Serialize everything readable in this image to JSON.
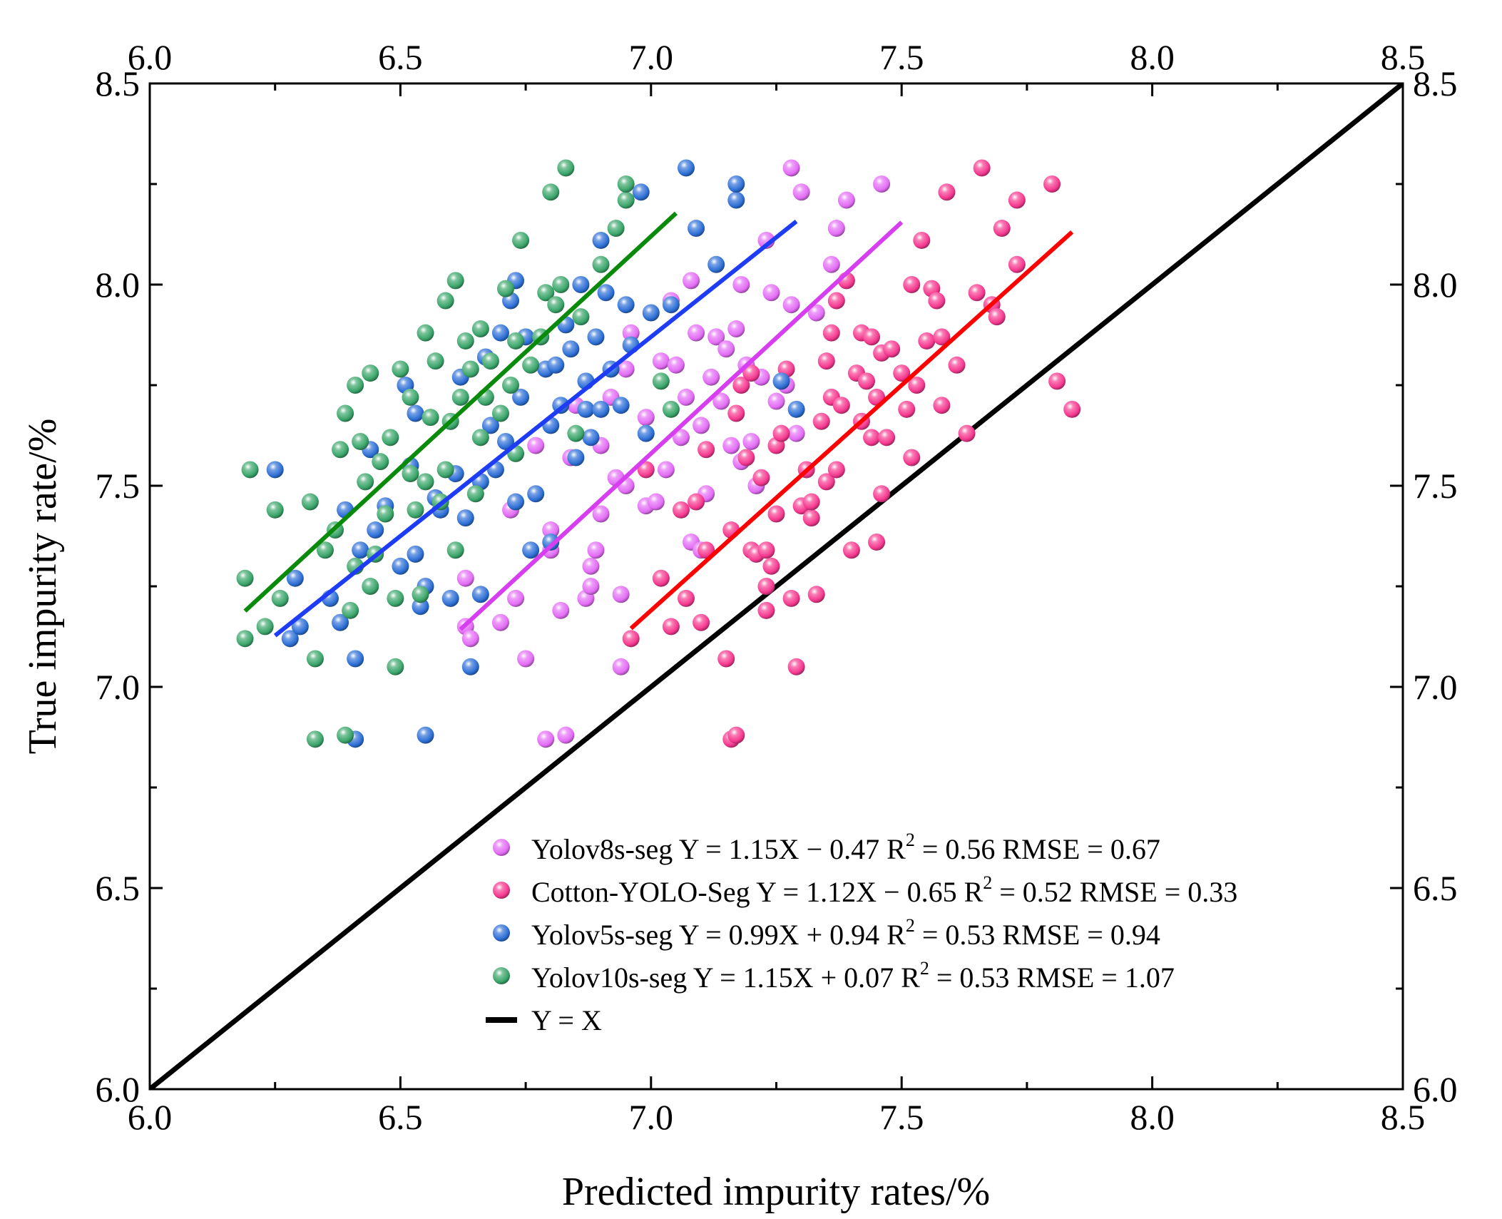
{
  "chart_data": {
    "type": "scatter",
    "xlabel": "Predicted impurity rates/%",
    "ylabel": "True impurity rate/%",
    "xlim": [
      6.0,
      8.5
    ],
    "ylim": [
      6.0,
      8.5
    ],
    "x_ticks": [
      "6.0",
      "6.5",
      "7.0",
      "7.5",
      "8.0",
      "8.5"
    ],
    "y_ticks": [
      "6.0",
      "6.5",
      "7.0",
      "7.5",
      "8.0",
      "8.5"
    ],
    "mirror_axes": true,
    "grid": false,
    "legend_position": "bottom-right",
    "series": [
      {
        "name": "Yolov8s-seg",
        "color": "#e36cf5",
        "marker": "sphere",
        "fit": {
          "slope": 1.15,
          "intercept": -0.47,
          "x_range": [
            6.62,
            7.5
          ],
          "color": "#d63ef0"
        },
        "legend_parts": [
          "Yolov8s-seg  Y = 1.15X − 0.47  R",
          "2",
          " = 0.56  RMSE = 0.67"
        ],
        "points": [
          [
            6.63,
            7.15
          ],
          [
            6.64,
            7.12
          ],
          [
            6.63,
            7.27
          ],
          [
            6.7,
            7.16
          ],
          [
            6.73,
            7.22
          ],
          [
            6.75,
            7.07
          ],
          [
            6.72,
            7.44
          ],
          [
            6.77,
            7.6
          ],
          [
            6.79,
            6.87
          ],
          [
            6.8,
            7.34
          ],
          [
            6.8,
            7.39
          ],
          [
            6.82,
            7.19
          ],
          [
            6.83,
            6.88
          ],
          [
            6.84,
            7.57
          ],
          [
            6.85,
            7.7
          ],
          [
            6.87,
            7.22
          ],
          [
            6.88,
            7.25
          ],
          [
            6.88,
            7.3
          ],
          [
            6.89,
            7.34
          ],
          [
            6.9,
            7.43
          ],
          [
            6.9,
            7.6
          ],
          [
            6.92,
            7.72
          ],
          [
            6.93,
            7.52
          ],
          [
            6.94,
            7.05
          ],
          [
            6.94,
            7.23
          ],
          [
            6.95,
            7.5
          ],
          [
            6.95,
            7.79
          ],
          [
            6.96,
            7.88
          ],
          [
            6.99,
            7.45
          ],
          [
            6.99,
            7.67
          ],
          [
            7.01,
            7.46
          ],
          [
            7.02,
            7.81
          ],
          [
            7.03,
            7.54
          ],
          [
            7.04,
            7.96
          ],
          [
            7.05,
            7.8
          ],
          [
            7.06,
            7.62
          ],
          [
            7.07,
            7.72
          ],
          [
            7.08,
            7.36
          ],
          [
            7.08,
            8.01
          ],
          [
            7.09,
            7.88
          ],
          [
            7.1,
            7.34
          ],
          [
            7.1,
            7.65
          ],
          [
            7.11,
            7.48
          ],
          [
            7.12,
            7.77
          ],
          [
            7.13,
            7.87
          ],
          [
            7.14,
            7.71
          ],
          [
            7.15,
            7.84
          ],
          [
            7.16,
            7.6
          ],
          [
            7.17,
            7.89
          ],
          [
            7.18,
            7.56
          ],
          [
            7.18,
            8.0
          ],
          [
            7.19,
            7.8
          ],
          [
            7.2,
            7.61
          ],
          [
            7.21,
            7.5
          ],
          [
            7.22,
            7.77
          ],
          [
            7.23,
            8.11
          ],
          [
            7.24,
            7.98
          ],
          [
            7.25,
            7.71
          ],
          [
            7.27,
            7.75
          ],
          [
            7.28,
            7.95
          ],
          [
            7.28,
            8.29
          ],
          [
            7.29,
            7.63
          ],
          [
            7.3,
            8.23
          ],
          [
            7.33,
            7.93
          ],
          [
            7.36,
            8.05
          ],
          [
            7.37,
            8.14
          ],
          [
            7.39,
            8.21
          ],
          [
            7.46,
            8.25
          ]
        ]
      },
      {
        "name": "Cotton-YOLO-Seg",
        "color": "#f5388f",
        "marker": "sphere",
        "fit": {
          "slope": 1.12,
          "intercept": -0.65,
          "x_range": [
            6.96,
            7.84
          ],
          "color": "#ff0000"
        },
        "legend_parts": [
          "Cotton-YOLO-Seg  Y = 1.12X − 0.65  R",
          "2",
          " = 0.52  RMSE = 0.33"
        ],
        "points": [
          [
            6.96,
            7.12
          ],
          [
            6.99,
            7.54
          ],
          [
            7.02,
            7.27
          ],
          [
            7.04,
            7.15
          ],
          [
            7.06,
            7.44
          ],
          [
            7.07,
            7.22
          ],
          [
            7.09,
            7.46
          ],
          [
            7.1,
            7.16
          ],
          [
            7.11,
            7.34
          ],
          [
            7.11,
            7.59
          ],
          [
            7.15,
            7.07
          ],
          [
            7.16,
            6.87
          ],
          [
            7.16,
            7.39
          ],
          [
            7.17,
            6.88
          ],
          [
            7.17,
            7.68
          ],
          [
            7.18,
            7.75
          ],
          [
            7.19,
            7.57
          ],
          [
            7.2,
            7.34
          ],
          [
            7.2,
            7.78
          ],
          [
            7.21,
            7.33
          ],
          [
            7.22,
            7.52
          ],
          [
            7.23,
            7.19
          ],
          [
            7.23,
            7.25
          ],
          [
            7.23,
            7.34
          ],
          [
            7.24,
            7.3
          ],
          [
            7.25,
            7.43
          ],
          [
            7.25,
            7.6
          ],
          [
            7.26,
            7.63
          ],
          [
            7.27,
            7.79
          ],
          [
            7.28,
            7.22
          ],
          [
            7.29,
            7.05
          ],
          [
            7.3,
            7.45
          ],
          [
            7.31,
            7.54
          ],
          [
            7.32,
            7.42
          ],
          [
            7.32,
            7.46
          ],
          [
            7.33,
            7.23
          ],
          [
            7.34,
            7.66
          ],
          [
            7.35,
            7.81
          ],
          [
            7.35,
            7.51
          ],
          [
            7.36,
            7.72
          ],
          [
            7.36,
            7.88
          ],
          [
            7.37,
            7.54
          ],
          [
            7.37,
            7.96
          ],
          [
            7.38,
            7.7
          ],
          [
            7.39,
            8.01
          ],
          [
            7.4,
            7.34
          ],
          [
            7.41,
            7.78
          ],
          [
            7.42,
            7.88
          ],
          [
            7.42,
            7.66
          ],
          [
            7.43,
            7.76
          ],
          [
            7.44,
            7.87
          ],
          [
            7.44,
            7.62
          ],
          [
            7.45,
            7.36
          ],
          [
            7.45,
            7.72
          ],
          [
            7.46,
            7.48
          ],
          [
            7.46,
            7.83
          ],
          [
            7.47,
            7.62
          ],
          [
            7.48,
            7.84
          ],
          [
            7.5,
            7.78
          ],
          [
            7.51,
            7.69
          ],
          [
            7.52,
            7.57
          ],
          [
            7.52,
            8.0
          ],
          [
            7.53,
            7.75
          ],
          [
            7.54,
            8.11
          ],
          [
            7.55,
            7.86
          ],
          [
            7.56,
            7.99
          ],
          [
            7.57,
            7.96
          ],
          [
            7.58,
            7.7
          ],
          [
            7.58,
            7.87
          ],
          [
            7.59,
            8.23
          ],
          [
            7.61,
            7.8
          ],
          [
            7.63,
            7.63
          ],
          [
            7.65,
            7.98
          ],
          [
            7.66,
            8.29
          ],
          [
            7.68,
            7.95
          ],
          [
            7.69,
            7.92
          ],
          [
            7.7,
            8.14
          ],
          [
            7.73,
            8.05
          ],
          [
            7.73,
            8.21
          ],
          [
            7.8,
            8.25
          ],
          [
            7.81,
            7.76
          ],
          [
            7.84,
            7.69
          ]
        ]
      },
      {
        "name": "Yolov5s-seg",
        "color": "#2d6fd6",
        "marker": "sphere",
        "fit": {
          "slope": 0.99,
          "intercept": 0.94,
          "x_range": [
            6.25,
            7.29
          ],
          "color": "#1f3cf5"
        },
        "legend_parts": [
          "Yolov5s-seg  Y = 0.99X + 0.94  R",
          "2",
          " = 0.53  RMSE = 0.94"
        ],
        "points": [
          [
            6.25,
            7.54
          ],
          [
            6.28,
            7.12
          ],
          [
            6.29,
            7.27
          ],
          [
            6.3,
            7.15
          ],
          [
            6.36,
            7.22
          ],
          [
            6.38,
            7.16
          ],
          [
            6.39,
            7.44
          ],
          [
            6.41,
            6.87
          ],
          [
            6.41,
            7.07
          ],
          [
            6.42,
            7.34
          ],
          [
            6.44,
            7.59
          ],
          [
            6.45,
            7.39
          ],
          [
            6.47,
            7.45
          ],
          [
            6.5,
            7.3
          ],
          [
            6.51,
            7.75
          ],
          [
            6.52,
            7.55
          ],
          [
            6.53,
            7.33
          ],
          [
            6.53,
            7.68
          ],
          [
            6.54,
            7.2
          ],
          [
            6.55,
            6.88
          ],
          [
            6.55,
            7.25
          ],
          [
            6.57,
            7.47
          ],
          [
            6.58,
            7.44
          ],
          [
            6.6,
            7.22
          ],
          [
            6.61,
            7.53
          ],
          [
            6.62,
            7.77
          ],
          [
            6.63,
            7.42
          ],
          [
            6.64,
            7.05
          ],
          [
            6.66,
            7.51
          ],
          [
            6.66,
            7.23
          ],
          [
            6.67,
            7.82
          ],
          [
            6.68,
            7.65
          ],
          [
            6.69,
            7.54
          ],
          [
            6.7,
            7.88
          ],
          [
            6.71,
            7.61
          ],
          [
            6.72,
            7.96
          ],
          [
            6.73,
            7.46
          ],
          [
            6.73,
            8.01
          ],
          [
            6.74,
            7.72
          ],
          [
            6.75,
            7.87
          ],
          [
            6.76,
            7.34
          ],
          [
            6.77,
            7.48
          ],
          [
            6.79,
            7.79
          ],
          [
            6.8,
            7.36
          ],
          [
            6.8,
            7.65
          ],
          [
            6.81,
            7.8
          ],
          [
            6.82,
            7.7
          ],
          [
            6.83,
            7.9
          ],
          [
            6.84,
            7.84
          ],
          [
            6.85,
            7.57
          ],
          [
            6.86,
            8.0
          ],
          [
            6.87,
            7.69
          ],
          [
            6.87,
            7.76
          ],
          [
            6.88,
            7.62
          ],
          [
            6.89,
            7.87
          ],
          [
            6.9,
            7.69
          ],
          [
            6.9,
            8.11
          ],
          [
            6.91,
            7.98
          ],
          [
            6.92,
            7.79
          ],
          [
            6.94,
            7.7
          ],
          [
            6.95,
            7.95
          ],
          [
            6.96,
            7.85
          ],
          [
            6.98,
            8.23
          ],
          [
            6.99,
            7.63
          ],
          [
            7.0,
            7.93
          ],
          [
            7.04,
            7.95
          ],
          [
            7.07,
            8.29
          ],
          [
            7.09,
            8.14
          ],
          [
            7.13,
            8.05
          ],
          [
            7.17,
            8.21
          ],
          [
            7.17,
            8.25
          ],
          [
            7.26,
            7.76
          ],
          [
            7.29,
            7.69
          ]
        ]
      },
      {
        "name": "Yolov10s-seg",
        "color": "#3aa56a",
        "marker": "sphere",
        "fit": {
          "slope": 1.15,
          "intercept": 0.07,
          "x_range": [
            6.19,
            7.05
          ],
          "color": "#0a8a0a"
        },
        "legend_parts": [
          "Yolov10s-seg  Y = 1.15X + 0.07  R",
          "2",
          " = 0.53  RMSE = 1.07"
        ],
        "points": [
          [
            6.19,
            7.12
          ],
          [
            6.19,
            7.27
          ],
          [
            6.2,
            7.54
          ],
          [
            6.23,
            7.15
          ],
          [
            6.25,
            7.44
          ],
          [
            6.26,
            7.22
          ],
          [
            6.32,
            7.46
          ],
          [
            6.33,
            6.87
          ],
          [
            6.33,
            7.07
          ],
          [
            6.35,
            7.34
          ],
          [
            6.37,
            7.39
          ],
          [
            6.38,
            7.59
          ],
          [
            6.39,
            6.88
          ],
          [
            6.39,
            7.68
          ],
          [
            6.4,
            7.19
          ],
          [
            6.41,
            7.3
          ],
          [
            6.41,
            7.75
          ],
          [
            6.42,
            7.61
          ],
          [
            6.43,
            7.51
          ],
          [
            6.44,
            7.25
          ],
          [
            6.44,
            7.78
          ],
          [
            6.45,
            7.33
          ],
          [
            6.46,
            7.56
          ],
          [
            6.47,
            7.43
          ],
          [
            6.48,
            7.62
          ],
          [
            6.49,
            7.05
          ],
          [
            6.49,
            7.22
          ],
          [
            6.5,
            7.79
          ],
          [
            6.52,
            7.53
          ],
          [
            6.52,
            7.72
          ],
          [
            6.53,
            7.44
          ],
          [
            6.54,
            7.23
          ],
          [
            6.55,
            7.51
          ],
          [
            6.55,
            7.88
          ],
          [
            6.56,
            7.67
          ],
          [
            6.57,
            7.81
          ],
          [
            6.58,
            7.46
          ],
          [
            6.59,
            7.54
          ],
          [
            6.59,
            7.96
          ],
          [
            6.6,
            7.66
          ],
          [
            6.61,
            7.34
          ],
          [
            6.61,
            8.01
          ],
          [
            6.62,
            7.72
          ],
          [
            6.63,
            7.86
          ],
          [
            6.64,
            7.79
          ],
          [
            6.65,
            7.48
          ],
          [
            6.66,
            7.62
          ],
          [
            6.66,
            7.89
          ],
          [
            6.67,
            7.72
          ],
          [
            6.68,
            7.81
          ],
          [
            6.7,
            7.68
          ],
          [
            6.71,
            7.99
          ],
          [
            6.72,
            7.75
          ],
          [
            6.73,
            7.58
          ],
          [
            6.73,
            7.86
          ],
          [
            6.74,
            8.11
          ],
          [
            6.76,
            7.8
          ],
          [
            6.78,
            7.87
          ],
          [
            6.79,
            7.98
          ],
          [
            6.8,
            8.23
          ],
          [
            6.81,
            7.95
          ],
          [
            6.82,
            8.0
          ],
          [
            6.83,
            8.29
          ],
          [
            6.85,
            7.63
          ],
          [
            6.86,
            7.92
          ],
          [
            6.9,
            8.05
          ],
          [
            6.93,
            8.14
          ],
          [
            6.95,
            8.21
          ],
          [
            6.95,
            8.25
          ],
          [
            7.04,
            7.69
          ],
          [
            7.02,
            7.76
          ]
        ]
      }
    ],
    "reference_line": {
      "name": "Y = X",
      "color": "#000000"
    }
  }
}
